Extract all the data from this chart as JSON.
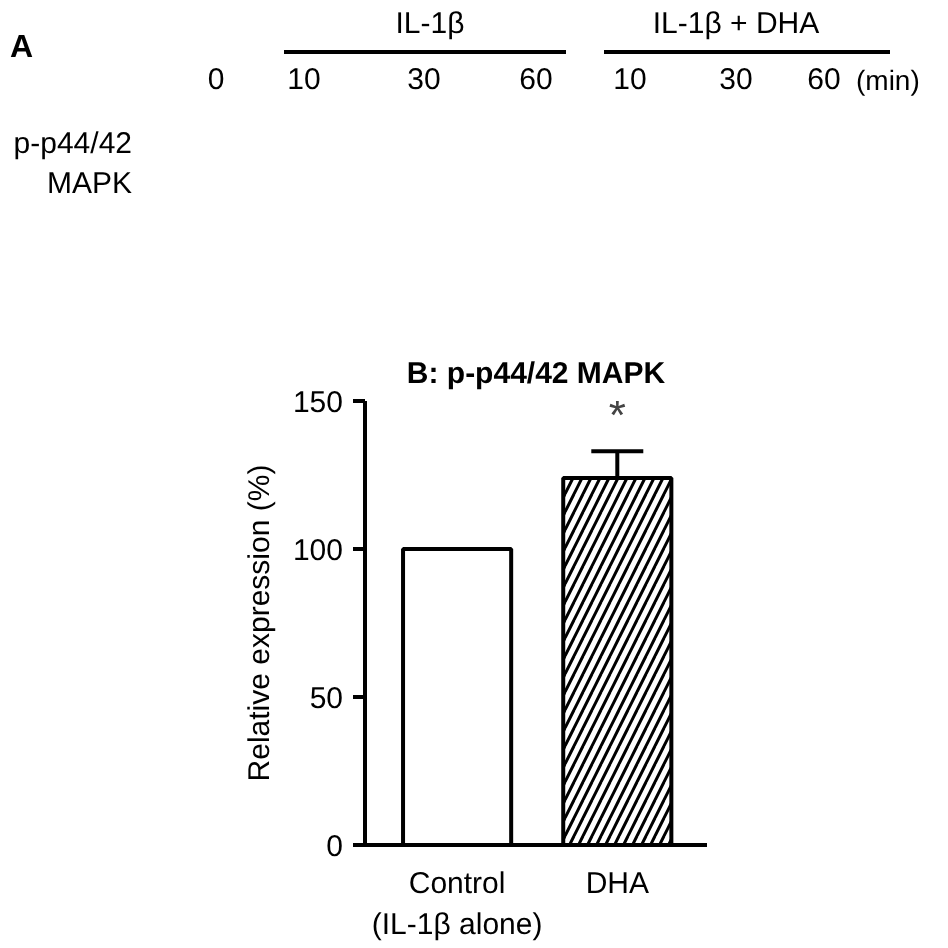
{
  "chart_data": {
    "type": "bar",
    "title": "B: p-p44/42 MAPK",
    "ylabel": "Relative expression (%)",
    "categories": [
      "Control\n(IL-1β alone)",
      "DHA"
    ],
    "values": [
      100,
      124
    ],
    "errors": [
      null,
      9
    ],
    "colors": [
      "#ffffff",
      "#ffffff"
    ],
    "ylim": [
      0,
      150
    ],
    "yticks": [
      0,
      50,
      100,
      150
    ],
    "grid": false,
    "annotations": [
      "*",
      "A",
      "IL-1β",
      "IL-1β + DHA",
      "0",
      "10",
      "30",
      "60",
      "10",
      "30",
      "60",
      "(min)",
      "p-p44/42\nMAPK"
    ]
  }
}
